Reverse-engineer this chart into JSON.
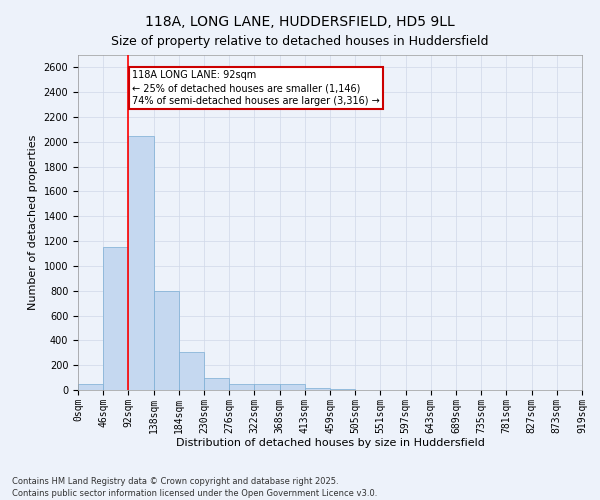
{
  "title_line1": "118A, LONG LANE, HUDDERSFIELD, HD5 9LL",
  "title_line2": "Size of property relative to detached houses in Huddersfield",
  "xlabel": "Distribution of detached houses by size in Huddersfield",
  "ylabel": "Number of detached properties",
  "footnote": "Contains HM Land Registry data © Crown copyright and database right 2025.\nContains public sector information licensed under the Open Government Licence v3.0.",
  "bin_labels": [
    "0sqm",
    "46sqm",
    "92sqm",
    "138sqm",
    "184sqm",
    "230sqm",
    "276sqm",
    "322sqm",
    "368sqm",
    "413sqm",
    "459sqm",
    "505sqm",
    "551sqm",
    "597sqm",
    "643sqm",
    "689sqm",
    "735sqm",
    "781sqm",
    "827sqm",
    "873sqm",
    "919sqm"
  ],
  "bar_values": [
    50,
    1150,
    2050,
    800,
    310,
    100,
    50,
    50,
    50,
    20,
    5,
    0,
    0,
    0,
    0,
    0,
    0,
    0,
    0,
    0
  ],
  "bar_color": "#c5d8f0",
  "bar_edge_color": "#7aadd4",
  "red_line_x": 2,
  "annotation_text": "118A LONG LANE: 92sqm\n← 25% of detached houses are smaller (1,146)\n74% of semi-detached houses are larger (3,316) →",
  "annotation_box_color": "#ffffff",
  "annotation_box_edge": "#cc0000",
  "ylim": [
    0,
    2700
  ],
  "yticks": [
    0,
    200,
    400,
    600,
    800,
    1000,
    1200,
    1400,
    1600,
    1800,
    2000,
    2200,
    2400,
    2600
  ],
  "grid_color": "#d0d8e8",
  "bg_color": "#edf2fa",
  "title_fontsize": 10,
  "subtitle_fontsize": 9,
  "axis_label_fontsize": 8,
  "tick_fontsize": 7,
  "footnote_fontsize": 6,
  "annot_fontsize": 7
}
